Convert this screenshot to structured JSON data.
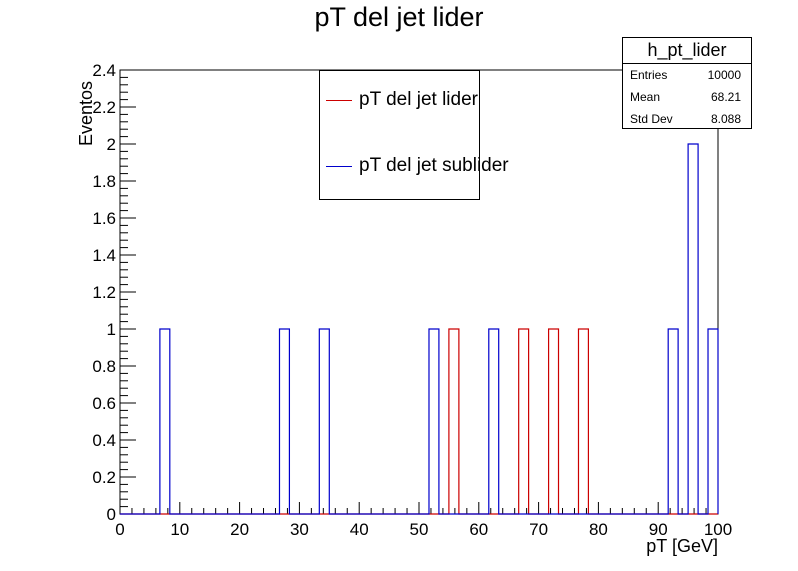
{
  "chart_data": {
    "type": "bar",
    "title": "pT del jet lider",
    "xlabel": "pT [GeV]",
    "ylabel": "Eventos",
    "xlim": [
      0,
      100
    ],
    "ylim": [
      0,
      2.4
    ],
    "x_ticks": [
      "0",
      "10",
      "20",
      "30",
      "40",
      "50",
      "60",
      "70",
      "80",
      "90",
      "100"
    ],
    "y_ticks": [
      "0",
      "0.2",
      "0.4",
      "0.6",
      "0.8",
      "1",
      "1.2",
      "1.4",
      "1.6",
      "1.8",
      "2",
      "2.2",
      "2.4"
    ],
    "bin_width": 1.6667,
    "grid": false,
    "legend_position": "top-center",
    "series": [
      {
        "name": "pT del jet lider",
        "color": "#cc0000",
        "bins": [
          {
            "x_low": 55.0,
            "x_high": 56.67,
            "value": 1
          },
          {
            "x_low": 66.67,
            "x_high": 68.33,
            "value": 1
          },
          {
            "x_low": 71.67,
            "x_high": 73.33,
            "value": 1
          },
          {
            "x_low": 76.67,
            "x_high": 78.33,
            "value": 1
          }
        ]
      },
      {
        "name": "pT del jet sublider",
        "color": "#0000cc",
        "bins": [
          {
            "x_low": 6.67,
            "x_high": 8.33,
            "value": 1
          },
          {
            "x_low": 26.67,
            "x_high": 28.33,
            "value": 1
          },
          {
            "x_low": 33.33,
            "x_high": 35.0,
            "value": 1
          },
          {
            "x_low": 51.67,
            "x_high": 53.33,
            "value": 1
          },
          {
            "x_low": 61.67,
            "x_high": 63.33,
            "value": 1
          },
          {
            "x_low": 91.67,
            "x_high": 93.33,
            "value": 1
          },
          {
            "x_low": 95.0,
            "x_high": 96.67,
            "value": 2
          },
          {
            "x_low": 98.33,
            "x_high": 100.0,
            "value": 1
          }
        ]
      }
    ]
  },
  "stats_box": {
    "title": "h_pt_lider",
    "rows": [
      {
        "label": "Entries",
        "value": "10000"
      },
      {
        "label": "Mean",
        "value": "68.21"
      },
      {
        "label": "Std Dev",
        "value": "8.088"
      }
    ]
  }
}
